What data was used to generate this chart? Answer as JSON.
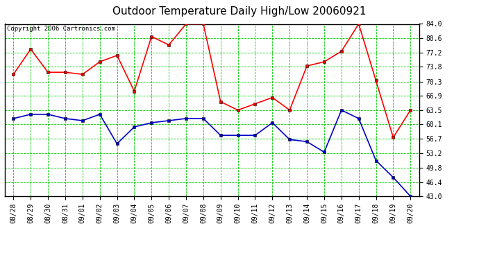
{
  "title": "Outdoor Temperature Daily High/Low 20060921",
  "copyright": "Copyright 2006 Cartronics.com",
  "x_labels": [
    "08/28",
    "08/29",
    "08/30",
    "08/31",
    "09/01",
    "09/02",
    "09/03",
    "09/04",
    "09/05",
    "09/06",
    "09/07",
    "09/08",
    "09/09",
    "09/10",
    "09/11",
    "09/12",
    "09/13",
    "09/14",
    "09/15",
    "09/16",
    "09/17",
    "09/18",
    "09/19",
    "09/20"
  ],
  "high_temps": [
    72.0,
    78.0,
    72.5,
    72.5,
    72.0,
    75.0,
    76.5,
    68.0,
    81.0,
    79.0,
    84.0,
    84.0,
    65.5,
    63.5,
    65.0,
    66.5,
    63.5,
    74.0,
    75.0,
    77.5,
    84.0,
    70.5,
    57.0,
    63.5
  ],
  "low_temps": [
    61.5,
    62.5,
    62.5,
    61.5,
    61.0,
    62.5,
    55.5,
    59.5,
    60.5,
    61.0,
    61.5,
    61.5,
    57.5,
    57.5,
    57.5,
    60.5,
    56.5,
    56.0,
    53.5,
    63.5,
    61.5,
    51.5,
    47.5,
    43.0
  ],
  "high_color": "#ff0000",
  "low_color": "#0000cc",
  "bg_color": "#ffffff",
  "plot_bg_color": "#ffffff",
  "grid_color": "#00cc00",
  "border_color": "#000000",
  "y_ticks": [
    43.0,
    46.4,
    49.8,
    53.2,
    56.7,
    60.1,
    63.5,
    66.9,
    70.3,
    73.8,
    77.2,
    80.6,
    84.0
  ],
  "y_min": 43.0,
  "y_max": 84.0,
  "marker": "s",
  "marker_size": 2.5,
  "linewidth": 1.2,
  "title_fontsize": 11,
  "copyright_fontsize": 6.5,
  "tick_fontsize": 7,
  "tick_color": "#000000"
}
